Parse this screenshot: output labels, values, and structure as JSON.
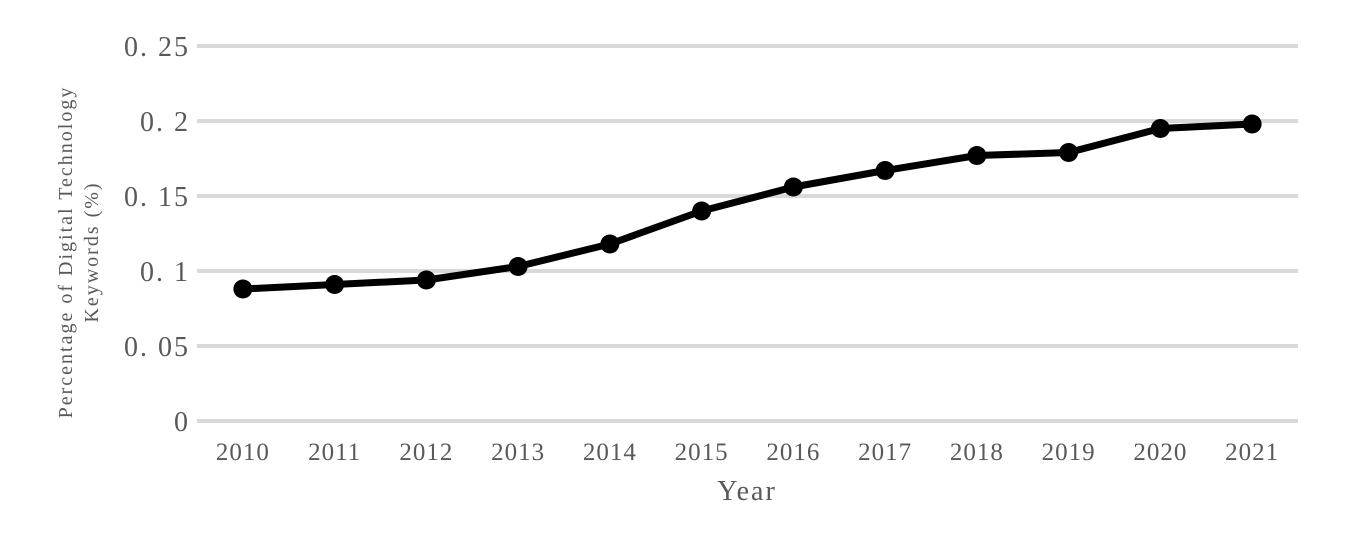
{
  "chart_data": {
    "type": "line",
    "title": "",
    "xlabel": "Year",
    "ylabel": "Percentage of Digital Technology Keywords (%)",
    "ylabel_lines": [
      "Percentage of Digital Technology",
      "Keywords (%)"
    ],
    "categories": [
      "2010",
      "2011",
      "2012",
      "2013",
      "2014",
      "2015",
      "2016",
      "2017",
      "2018",
      "2019",
      "2020",
      "2021"
    ],
    "series": [
      {
        "name": "Percentage of Digital Technology Keywords (%)",
        "values": [
          0.088,
          0.091,
          0.094,
          0.103,
          0.118,
          0.14,
          0.156,
          0.167,
          0.177,
          0.179,
          0.195,
          0.198
        ]
      }
    ],
    "ylim": [
      0,
      0.25
    ],
    "y_ticks": [
      0,
      0.05,
      0.1,
      0.15,
      0.2,
      0.25
    ],
    "y_tick_labels": [
      "0",
      "0. 05",
      "0. 1",
      "0. 15",
      "0. 2",
      "0. 25"
    ],
    "grid": true,
    "legend": false,
    "marker": "circle",
    "colors": {
      "line": "#000000",
      "marker": "#000000",
      "gridline": "#d9d9d9",
      "text": "#595959",
      "background": "#ffffff"
    }
  }
}
